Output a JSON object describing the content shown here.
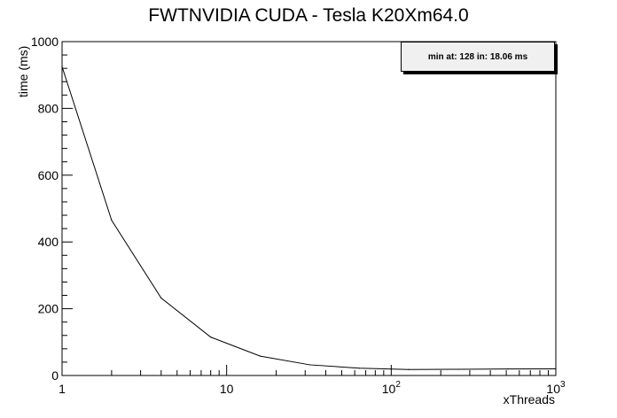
{
  "chart_data": {
    "type": "line",
    "title": "FWTNVIDIA CUDA - Tesla K20Xm64.0",
    "xlabel": "xThreads",
    "ylabel": "time (ms)",
    "xscale": "log",
    "xlim": [
      1,
      1000
    ],
    "ylim": [
      0,
      1000
    ],
    "x": [
      1,
      2,
      4,
      8,
      16,
      32,
      64,
      128,
      256,
      512,
      1000
    ],
    "y": [
      925,
      465,
      232,
      115,
      58,
      32,
      22,
      18.06,
      18.5,
      19.5,
      20
    ],
    "yticks": [
      0,
      200,
      400,
      600,
      800,
      1000
    ],
    "xticks": [
      {
        "value": 1,
        "base": "1",
        "exp": ""
      },
      {
        "value": 10,
        "base": "10",
        "exp": ""
      },
      {
        "value": 100,
        "base": "10",
        "exp": "2"
      },
      {
        "value": 1000,
        "base": "10",
        "exp": "3"
      }
    ],
    "stats_text": "min at: 128 in: 18.06 ms",
    "line_color": "#000000"
  }
}
